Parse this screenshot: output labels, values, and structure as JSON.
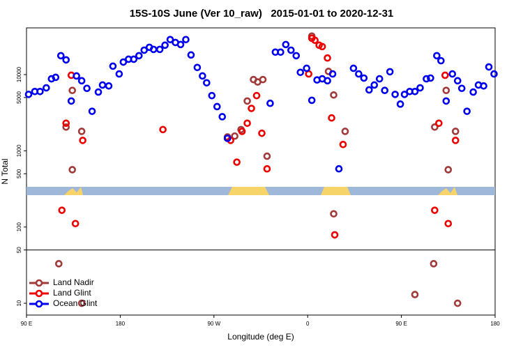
{
  "chart_data": {
    "type": "scatter",
    "title": "15S-10S June (Ver 10_raw)   2015-01-01 to 2020-12-31",
    "x_label": "Longitude (deg E)",
    "y_label": "N Total",
    "xlim": [
      90,
      540
    ],
    "xticks": [
      {
        "value": 90,
        "label": "90 E"
      },
      {
        "value": 180,
        "label": "180"
      },
      {
        "value": 270,
        "label": "90 W"
      },
      {
        "value": 360,
        "label": "0"
      },
      {
        "value": 450,
        "label": "90 E"
      },
      {
        "value": 540,
        "label": "180"
      }
    ],
    "ylim": [
      7,
      41000
    ],
    "log_y": true,
    "yticks": [
      10,
      50,
      100,
      500,
      1000,
      5000,
      10000
    ],
    "reference_line": 50,
    "legend": "bottom-left",
    "series": [
      {
        "name": "Land Nadir",
        "color": "#a33a3a",
        "x": [
          134,
          128,
          134,
          143,
          121,
          143,
          283,
          290,
          296,
          302,
          308,
          312,
          317,
          321,
          364,
          380,
          385,
          396,
          385,
          463,
          481,
          482,
          493,
          495,
          502,
          504
        ],
        "y": [
          6200,
          2050,
          565,
          1800,
          33,
          10,
          1520,
          1560,
          1900,
          4500,
          8600,
          8000,
          8600,
          850,
          32000,
          11000,
          5400,
          1800,
          149,
          13,
          33,
          2050,
          6200,
          565,
          1800,
          10
        ]
      },
      {
        "name": "Land Glint",
        "color": "#ee0000",
        "x": [
          133,
          128,
          124,
          137,
          144,
          221,
          283,
          286,
          292,
          297,
          302,
          306,
          311,
          316,
          321,
          361,
          364,
          367,
          371,
          374,
          379,
          383,
          386,
          394,
          482,
          486,
          492,
          495,
          502
        ],
        "y": [
          9800,
          2300,
          166,
          111,
          1370,
          1900,
          1460,
          1370,
          710,
          1800,
          2300,
          3600,
          5300,
          1700,
          580,
          10200,
          30000,
          28200,
          24300,
          23300,
          16500,
          2700,
          79,
          1210,
          166,
          2300,
          9800,
          111,
          1370
        ]
      },
      {
        "name": "Ocean Glint",
        "color": "#0000ee",
        "x": [
          92,
          98,
          103,
          109,
          114,
          118,
          123,
          128,
          133,
          138,
          143,
          148,
          153,
          159,
          163,
          169,
          173,
          179,
          183,
          188,
          193,
          198,
          203,
          208,
          212,
          218,
          223,
          228,
          233,
          238,
          243,
          248,
          254,
          259,
          263,
          268,
          273,
          278,
          283,
          324,
          329,
          334,
          339,
          344,
          349,
          353,
          359,
          364,
          369,
          374,
          379,
          384,
          390,
          404,
          409,
          414,
          419,
          424,
          429,
          434,
          439,
          444,
          449,
          453,
          458,
          463,
          468,
          474,
          478,
          484,
          488,
          493,
          499,
          504,
          508,
          513,
          519,
          524,
          529,
          534,
          539
        ],
        "y": [
          5500,
          6000,
          6000,
          6700,
          8800,
          9200,
          17700,
          15600,
          4500,
          9600,
          8300,
          6600,
          3300,
          5900,
          7300,
          7100,
          12900,
          10200,
          14600,
          15900,
          15900,
          17700,
          20900,
          22800,
          21400,
          21400,
          24300,
          28800,
          26400,
          24800,
          28800,
          18100,
          12400,
          9600,
          7800,
          5300,
          3800,
          2800,
          1460,
          4200,
          19700,
          19700,
          24800,
          20900,
          17700,
          10700,
          12100,
          4600,
          8500,
          8800,
          8300,
          10200,
          580,
          12100,
          10200,
          9000,
          6300,
          7300,
          8800,
          6200,
          10900,
          5500,
          4100,
          5500,
          6000,
          6000,
          6700,
          8800,
          9000,
          17700,
          15200,
          4500,
          10200,
          8300,
          6600,
          3300,
          5900,
          7300,
          7100,
          12600,
          10200
        ]
      }
    ]
  }
}
